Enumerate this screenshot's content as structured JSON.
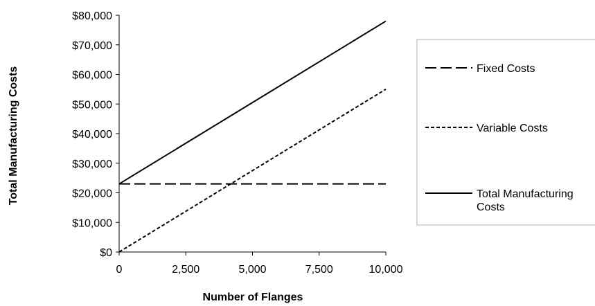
{
  "chart_data": {
    "type": "line",
    "title": "",
    "xlabel": "Number of Flanges",
    "ylabel": "Total Manufacturing Costs",
    "xlim": [
      0,
      10000
    ],
    "ylim": [
      0,
      80000
    ],
    "x_ticks": [
      0,
      2500,
      5000,
      7500,
      10000
    ],
    "x_tick_labels": [
      "0",
      "2,500",
      "5,000",
      "7,500",
      "10,000"
    ],
    "y_ticks": [
      0,
      10000,
      20000,
      30000,
      40000,
      50000,
      60000,
      70000,
      80000
    ],
    "y_tick_labels": [
      "$0",
      "$10,000",
      "$20,000",
      "$30,000",
      "$40,000",
      "$50,000",
      "$60,000",
      "$70,000",
      "$80,000"
    ],
    "grid": false,
    "legend_placement": "right",
    "x": [
      0,
      10000
    ],
    "series": [
      {
        "name": "Fixed Costs",
        "values": [
          23000,
          23000
        ],
        "style": "long-dash",
        "color": "#000000"
      },
      {
        "name": "Variable Costs",
        "values": [
          0,
          55000
        ],
        "style": "short-dash",
        "color": "#000000"
      },
      {
        "name": "Total Manufacturing Costs",
        "legend_lines": [
          "Total Manufacturing",
          "Costs"
        ],
        "values": [
          23000,
          78000
        ],
        "style": "solid",
        "color": "#000000"
      }
    ]
  }
}
